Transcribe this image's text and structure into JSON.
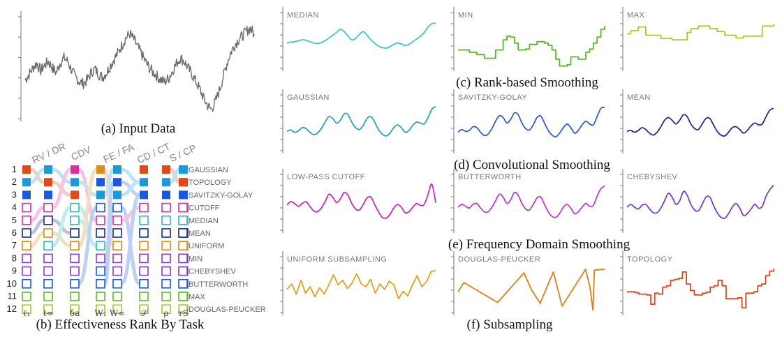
{
  "chart_data": [
    {
      "type": "line",
      "id": "input",
      "caption": "(a)  Input Data",
      "panel_label": "",
      "color": "#6b6b6b",
      "style": "noisy",
      "values": [
        0.42,
        0.48,
        0.55,
        0.6,
        0.52,
        0.58,
        0.62,
        0.55,
        0.5,
        0.6,
        0.66,
        0.62,
        0.52,
        0.45,
        0.4,
        0.38,
        0.42,
        0.5,
        0.54,
        0.48,
        0.45,
        0.5,
        0.58,
        0.65,
        0.72,
        0.8,
        0.88,
        0.92,
        0.86,
        0.78,
        0.7,
        0.62,
        0.55,
        0.5,
        0.46,
        0.42,
        0.4,
        0.44,
        0.52,
        0.6,
        0.66,
        0.62,
        0.55,
        0.48,
        0.4,
        0.32,
        0.22,
        0.14,
        0.1,
        0.18,
        0.3,
        0.45,
        0.6,
        0.72,
        0.8,
        0.86,
        0.9,
        0.95,
        0.98,
        0.92
      ]
    },
    {
      "type": "line",
      "id": "median",
      "caption": "",
      "panel_label": "MEDIAN",
      "color": "#3cc9c0",
      "style": "smooth",
      "values": [
        0.55,
        0.57,
        0.58,
        0.6,
        0.62,
        0.61,
        0.58,
        0.55,
        0.54,
        0.56,
        0.6,
        0.66,
        0.72,
        0.78,
        0.85,
        0.8,
        0.7,
        0.62,
        0.65,
        0.74,
        0.8,
        0.72,
        0.62,
        0.55,
        0.48,
        0.45,
        0.44,
        0.47,
        0.52,
        0.55,
        0.53,
        0.5,
        0.52,
        0.58,
        0.64,
        0.7,
        0.78,
        0.9,
        0.97,
        0.98
      ]
    },
    {
      "type": "line",
      "id": "min",
      "caption": "",
      "panel_label": "MIN",
      "color": "#55bb22",
      "style": "step",
      "values": [
        0.4,
        0.4,
        0.4,
        0.35,
        0.35,
        0.3,
        0.3,
        0.22,
        0.22,
        0.22,
        0.4,
        0.4,
        0.62,
        0.7,
        0.68,
        0.55,
        0.4,
        0.4,
        0.42,
        0.52,
        0.52,
        0.58,
        0.58,
        0.55,
        0.5,
        0.4,
        0.2,
        0.05,
        0.05,
        0.08,
        0.25,
        0.25,
        0.2,
        0.2,
        0.35,
        0.42,
        0.55,
        0.68,
        0.85,
        0.92
      ]
    },
    {
      "type": "line",
      "id": "max",
      "caption": "",
      "panel_label": "MAX",
      "color": "#aacc22",
      "style": "step",
      "values": [
        0.75,
        0.82,
        0.82,
        0.9,
        0.9,
        0.72,
        0.72,
        0.72,
        0.72,
        0.65,
        0.65,
        0.65,
        0.62,
        0.62,
        0.62,
        0.62,
        0.78,
        0.86,
        0.86,
        0.92,
        0.92,
        0.92,
        0.86,
        0.86,
        0.8,
        0.8,
        0.72,
        0.72,
        0.72,
        0.66,
        0.66,
        0.7,
        0.7,
        0.7,
        0.7,
        0.7,
        0.92,
        0.92,
        0.92,
        0.96
      ]
    },
    {
      "type": "line",
      "id": "gaussian",
      "caption": "",
      "panel_label": "GAUSSIAN",
      "color": "#2a9ec8",
      "style": "smooth",
      "values": [
        0.42,
        0.45,
        0.4,
        0.43,
        0.5,
        0.48,
        0.4,
        0.35,
        0.38,
        0.48,
        0.62,
        0.74,
        0.7,
        0.6,
        0.66,
        0.8,
        0.78,
        0.62,
        0.5,
        0.46,
        0.55,
        0.7,
        0.74,
        0.62,
        0.46,
        0.36,
        0.32,
        0.38,
        0.5,
        0.56,
        0.5,
        0.4,
        0.44,
        0.55,
        0.62,
        0.6,
        0.58,
        0.72,
        0.9,
        0.96
      ]
    },
    {
      "type": "line",
      "id": "savitzky",
      "caption": "",
      "panel_label": "SAVITZKY-GOLAY",
      "color": "#2f5fce",
      "style": "smooth",
      "values": [
        0.4,
        0.46,
        0.42,
        0.44,
        0.52,
        0.5,
        0.4,
        0.33,
        0.36,
        0.48,
        0.64,
        0.76,
        0.72,
        0.6,
        0.68,
        0.82,
        0.78,
        0.6,
        0.48,
        0.45,
        0.56,
        0.72,
        0.75,
        0.6,
        0.44,
        0.34,
        0.3,
        0.38,
        0.5,
        0.58,
        0.5,
        0.38,
        0.44,
        0.56,
        0.64,
        0.58,
        0.56,
        0.74,
        0.92,
        0.94
      ]
    },
    {
      "type": "line",
      "id": "mean",
      "caption": "",
      "panel_label": "MEAN",
      "color": "#1f2a8c",
      "style": "smooth",
      "values": [
        0.42,
        0.44,
        0.4,
        0.44,
        0.5,
        0.46,
        0.38,
        0.34,
        0.4,
        0.52,
        0.66,
        0.72,
        0.66,
        0.58,
        0.66,
        0.78,
        0.74,
        0.58,
        0.48,
        0.46,
        0.58,
        0.7,
        0.7,
        0.56,
        0.42,
        0.34,
        0.32,
        0.4,
        0.5,
        0.52,
        0.46,
        0.38,
        0.44,
        0.54,
        0.6,
        0.56,
        0.58,
        0.74,
        0.88,
        0.92
      ]
    },
    {
      "type": "line",
      "id": "lowpass",
      "caption": "",
      "panel_label": "LOW-PASS CUTOFF",
      "color": "#c42ab8",
      "style": "smooth",
      "values": [
        0.55,
        0.62,
        0.58,
        0.52,
        0.58,
        0.62,
        0.52,
        0.42,
        0.4,
        0.48,
        0.62,
        0.78,
        0.72,
        0.6,
        0.68,
        0.82,
        0.76,
        0.58,
        0.46,
        0.44,
        0.56,
        0.7,
        0.72,
        0.56,
        0.4,
        0.28,
        0.26,
        0.34,
        0.48,
        0.56,
        0.5,
        0.38,
        0.4,
        0.5,
        0.58,
        0.54,
        0.56,
        0.78,
        1.0,
        0.6
      ]
    },
    {
      "type": "line",
      "id": "butterworth",
      "caption": "",
      "panel_label": "BUTTERWORTH",
      "color": "#b83ccf",
      "style": "smooth",
      "values": [
        0.5,
        0.56,
        0.52,
        0.48,
        0.56,
        0.58,
        0.48,
        0.4,
        0.4,
        0.5,
        0.64,
        0.78,
        0.72,
        0.58,
        0.66,
        0.82,
        0.76,
        0.58,
        0.46,
        0.44,
        0.56,
        0.7,
        0.72,
        0.56,
        0.4,
        0.3,
        0.28,
        0.36,
        0.5,
        0.56,
        0.48,
        0.36,
        0.4,
        0.5,
        0.58,
        0.52,
        0.54,
        0.74,
        0.9,
        0.96
      ]
    },
    {
      "type": "line",
      "id": "chebyshev",
      "caption": "",
      "panel_label": "CHEBYSHEV",
      "color": "#7a3cc8",
      "style": "smooth",
      "values": [
        0.5,
        0.56,
        0.5,
        0.46,
        0.54,
        0.56,
        0.46,
        0.38,
        0.38,
        0.48,
        0.64,
        0.8,
        0.72,
        0.56,
        0.64,
        0.84,
        0.76,
        0.56,
        0.44,
        0.42,
        0.56,
        0.72,
        0.72,
        0.54,
        0.38,
        0.28,
        0.26,
        0.36,
        0.5,
        0.58,
        0.48,
        0.32,
        0.36,
        0.46,
        0.56,
        0.48,
        0.52,
        0.74,
        0.88,
        0.98
      ]
    },
    {
      "type": "line",
      "id": "uniform",
      "caption": "",
      "panel_label": "UNIFORM SUBSAMPLING",
      "color": "#e0a020",
      "style": "linear",
      "values": [
        0.5,
        0.62,
        0.4,
        0.7,
        0.42,
        0.56,
        0.34,
        0.54,
        0.4,
        0.6,
        0.82,
        0.6,
        0.7,
        0.52,
        0.64,
        0.84,
        0.62,
        0.56,
        0.72,
        0.42,
        0.62,
        0.5,
        0.68,
        0.6,
        0.3,
        0.46,
        0.36,
        0.6,
        0.8,
        0.56,
        0.66,
        0.88,
        0.92
      ]
    },
    {
      "type": "line",
      "id": "douglas",
      "caption": "",
      "panel_label": "DOUGLAS-PEUCKER",
      "color": "#e07d16",
      "style": "linear",
      "x": [
        0.0,
        0.04,
        0.27,
        0.45,
        0.5,
        0.56,
        0.65,
        0.71,
        0.87,
        0.9,
        0.92,
        0.93,
        1.0
      ],
      "values": [
        0.45,
        0.65,
        0.22,
        0.86,
        0.5,
        0.2,
        0.88,
        0.14,
        0.94,
        0.55,
        0.05,
        0.92,
        0.94
      ]
    },
    {
      "type": "line",
      "id": "topology",
      "caption": "",
      "panel_label": "TOPOLOGY",
      "color": "#d9461c",
      "style": "step",
      "values": [
        0.45,
        0.45,
        0.43,
        0.4,
        0.4,
        0.38,
        0.18,
        0.42,
        0.4,
        0.55,
        0.58,
        0.7,
        0.72,
        0.74,
        0.88,
        0.62,
        0.48,
        0.38,
        0.38,
        0.42,
        0.44,
        0.55,
        0.58,
        0.7,
        0.58,
        0.3,
        0.3,
        0.3,
        0.32,
        0.1,
        0.42,
        0.42,
        0.45,
        0.58,
        0.62,
        0.8,
        0.9,
        0.95
      ]
    }
  ],
  "captions": {
    "c": "(c)  Rank-based Smoothing",
    "d": "(d)  Convolutional Smoothing",
    "e": "(e)  Frequency Domain Smoothing",
    "f": "(f)  Subsampling",
    "b": "(b)  Effectiveness Rank By Task"
  },
  "rank_chart": {
    "type": "table",
    "task_groups": [
      "RV / DR",
      "CDV",
      "FE / FA",
      "CD / CT",
      "S / CP"
    ],
    "metrics": [
      "ℓ₁",
      "ℓ∞",
      "δa",
      "W₁",
      "W∞",
      "𝒮",
      "ρ",
      "rS"
    ],
    "ranks": [
      "1",
      "2",
      "3",
      "4",
      "5",
      "6",
      "7",
      "8",
      "9",
      "10",
      "11",
      "12"
    ],
    "methods": [
      {
        "key": "gaussian",
        "label": "GAUSSIAN",
        "color": "#1c9ad8"
      },
      {
        "key": "topology",
        "label": "TOPOLOGY",
        "color": "#e04a1a"
      },
      {
        "key": "savitzky",
        "label": "SAVITZKY-GOLAY",
        "color": "#1a58e0"
      },
      {
        "key": "cutoff",
        "label": "CUTOFF",
        "color": "#e02aa0"
      },
      {
        "key": "median",
        "label": "MEDIAN",
        "color": "#2abfb8"
      },
      {
        "key": "mean",
        "label": "MEAN",
        "color": "#1c2a8c"
      },
      {
        "key": "uniform",
        "label": "UNIFORM",
        "color": "#e08a1a"
      },
      {
        "key": "min",
        "label": "MIN",
        "color": "#8a3ac8"
      },
      {
        "key": "chebyshev",
        "label": "CHEBYSHEV",
        "color": "#8a3ac8"
      },
      {
        "key": "butterworth",
        "label": "BUTTERWORTH",
        "color": "#1a58e0"
      },
      {
        "key": "max",
        "label": "MAX",
        "color": "#5abf22"
      },
      {
        "key": "douglas",
        "label": "DOUGLAS-PEUCKER",
        "color": "#a8c822"
      }
    ],
    "grid": [
      [
        "topology",
        "gaussian",
        "cutoff",
        "uniform",
        "gaussian",
        "topology",
        "topology",
        "gaussian"
      ],
      [
        "gaussian",
        "topology",
        "gaussian",
        "savitzky",
        "savitzky",
        "gaussian",
        "gaussian",
        "topology"
      ],
      [
        "savitzky",
        "savitzky",
        "topology",
        "gaussian",
        "gaussian",
        "savitzky",
        "savitzky",
        "savitzky"
      ],
      [
        "cutoff",
        "cutoff",
        "median",
        "butterworth",
        "butterworth",
        "cutoff",
        "cutoff",
        "cutoff"
      ],
      [
        "cutoff",
        "mean",
        "median",
        "cutoff",
        "cutoff",
        "median",
        "median",
        "median"
      ],
      [
        "mean",
        "uniform",
        "mean",
        "mean",
        "mean",
        "mean",
        "mean",
        "mean"
      ],
      [
        "uniform",
        "median",
        "uniform",
        "median",
        "uniform",
        "uniform",
        "uniform",
        "uniform"
      ],
      [
        "min",
        "min",
        "min",
        "min",
        "min",
        "min",
        "min",
        "min"
      ],
      [
        "chebyshev",
        "chebyshev",
        "chebyshev",
        "savitzky",
        "chebyshev",
        "chebyshev",
        "chebyshev",
        "chebyshev"
      ],
      [
        "butterworth",
        "butterworth",
        "butterworth",
        "butterworth",
        "savitzky",
        "butterworth",
        "butterworth",
        "butterworth"
      ],
      [
        "max",
        "max",
        "max",
        "max",
        "max",
        "max",
        "max",
        "max"
      ],
      [
        "douglas",
        "douglas",
        "douglas",
        "douglas",
        "douglas",
        "douglas",
        "douglas",
        "douglas"
      ]
    ],
    "filled_rows": 3
  }
}
